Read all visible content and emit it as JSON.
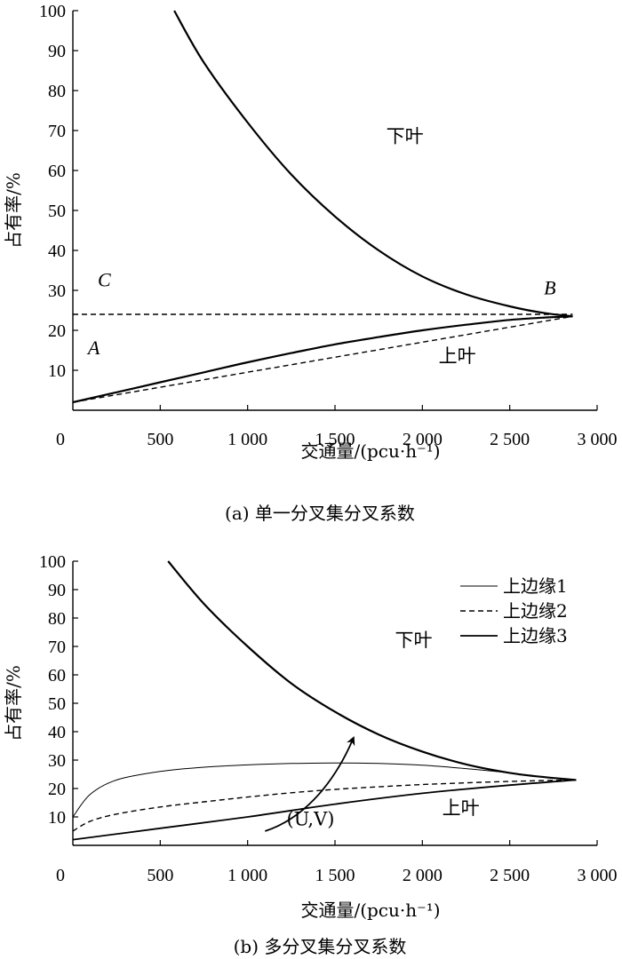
{
  "chart_data": [
    {
      "type": "line",
      "caption": "(a) 单一分叉集分叉系数",
      "xlabel": "交通量/(pcu·h⁻¹)",
      "ylabel": "占有率/%",
      "xlim": [
        0,
        3000
      ],
      "ylim": [
        0,
        100
      ],
      "xticks": [
        "0",
        "500",
        "1 000",
        "1 500",
        "2 000",
        "2 500",
        "3 000"
      ],
      "yticks": [
        "10",
        "20",
        "30",
        "40",
        "50",
        "60",
        "70",
        "80",
        "90",
        "100"
      ],
      "xtick_values": [
        0,
        500,
        1000,
        1500,
        2000,
        2500,
        3000
      ],
      "ytick_values": [
        10,
        20,
        30,
        40,
        50,
        60,
        70,
        80,
        90,
        100
      ],
      "series": [
        {
          "style": "solid-thick",
          "x": [
            580,
            750,
            1000,
            1250,
            1500,
            1750,
            2000,
            2250,
            2500,
            2700,
            2860
          ],
          "y": [
            100,
            87,
            72,
            59,
            48.5,
            40,
            33.5,
            29,
            26,
            24.3,
            23.5
          ]
        },
        {
          "style": "solid-thick",
          "x": [
            0,
            250,
            500,
            750,
            1000,
            1250,
            1500,
            1750,
            2000,
            2250,
            2500,
            2700,
            2860
          ],
          "y": [
            2,
            4.5,
            7,
            9.5,
            12,
            14.3,
            16.5,
            18.3,
            20,
            21.4,
            22.6,
            23.2,
            23.5
          ]
        },
        {
          "style": "dashed",
          "x": [
            0,
            2860
          ],
          "y": [
            2,
            23.5
          ]
        },
        {
          "style": "dashed",
          "x": [
            0,
            2860
          ],
          "y": [
            24,
            24
          ]
        }
      ],
      "annotations": [
        {
          "text": "下叶",
          "x": 1900,
          "y": 67
        },
        {
          "text": "上叶",
          "x": 2200,
          "y": 12
        },
        {
          "text": "A",
          "x": 120,
          "y": 14,
          "italic": true
        },
        {
          "text": "B",
          "x": 2730,
          "y": 29,
          "italic": true
        },
        {
          "text": "C",
          "x": 180,
          "y": 31,
          "italic": true
        }
      ]
    },
    {
      "type": "line",
      "caption": "(b) 多分叉集分叉系数",
      "xlabel": "交通量/(pcu·h⁻¹)",
      "ylabel": "占有率/%",
      "xlim": [
        0,
        3000
      ],
      "ylim": [
        0,
        100
      ],
      "xticks": [
        "0",
        "500",
        "1 000",
        "1 500",
        "2 000",
        "2 500",
        "3 000"
      ],
      "yticks": [
        "10",
        "20",
        "30",
        "40",
        "50",
        "60",
        "70",
        "80",
        "90",
        "100"
      ],
      "xtick_values": [
        0,
        500,
        1000,
        1500,
        2000,
        2500,
        3000
      ],
      "ytick_values": [
        10,
        20,
        30,
        40,
        50,
        60,
        70,
        80,
        90,
        100
      ],
      "legend": [
        "上边缘1",
        "上边缘2",
        "上边缘3"
      ],
      "legend_position": "top-right",
      "series": [
        {
          "style": "solid-thick",
          "x": [
            545,
            750,
            1000,
            1250,
            1500,
            1750,
            2000,
            2250,
            2500,
            2700,
            2880
          ],
          "y": [
            100,
            85,
            70,
            57,
            47,
            39,
            33,
            28.5,
            25.5,
            24,
            23
          ]
        },
        {
          "name": "上边缘1",
          "style": "solid-thin",
          "x": [
            0,
            100,
            250,
            500,
            750,
            1000,
            1250,
            1500,
            1750,
            2000,
            2250,
            2500,
            2700,
            2880
          ],
          "y": [
            10,
            18,
            23,
            26,
            27.5,
            28.3,
            28.8,
            29,
            28.8,
            28.2,
            27,
            25.5,
            24,
            23
          ]
        },
        {
          "name": "上边缘2",
          "style": "dashed",
          "x": [
            0,
            100,
            250,
            500,
            750,
            1000,
            1250,
            1500,
            1750,
            2000,
            2250,
            2500,
            2700,
            2880
          ],
          "y": [
            5,
            8.5,
            11,
            13.5,
            15.3,
            17,
            18.5,
            19.7,
            20.6,
            21.4,
            22,
            22.5,
            22.8,
            23
          ]
        },
        {
          "name": "上边缘3",
          "style": "solid-medium",
          "x": [
            0,
            500,
            1000,
            1500,
            2000,
            2500,
            2880
          ],
          "y": [
            2,
            6,
            10,
            14.5,
            18.3,
            21.2,
            23
          ]
        }
      ],
      "annotations": [
        {
          "text": "下叶",
          "x": 1950,
          "y": 70
        },
        {
          "text": "上叶",
          "x": 2220,
          "y": 11
        },
        {
          "text": "(U,V)",
          "x": 1360,
          "y": 7
        }
      ],
      "arrow": {
        "x": [
          1100,
          1300,
          1480,
          1600
        ],
        "y": [
          5,
          9,
          20,
          37
        ]
      }
    }
  ]
}
